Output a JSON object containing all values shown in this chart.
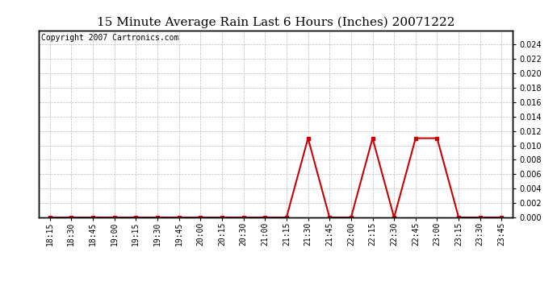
{
  "title": "15 Minute Average Rain Last 6 Hours (Inches) 20071222",
  "copyright_text": "Copyright 2007 Cartronics.com",
  "x_labels": [
    "18:15",
    "18:30",
    "18:45",
    "19:00",
    "19:15",
    "19:30",
    "19:45",
    "20:00",
    "20:15",
    "20:30",
    "21:00",
    "21:15",
    "21:30",
    "21:45",
    "22:00",
    "22:15",
    "22:30",
    "22:45",
    "23:00",
    "23:15",
    "23:30",
    "23:45"
  ],
  "y_values": [
    0.0,
    0.0,
    0.0,
    0.0,
    0.0,
    0.0,
    0.0,
    0.0,
    0.0,
    0.0,
    0.0,
    0.0,
    0.011,
    0.0,
    0.0,
    0.011,
    0.0,
    0.011,
    0.011,
    0.0,
    0.0,
    0.0
  ],
  "ylim": [
    0.0,
    0.026
  ],
  "yticks": [
    0.0,
    0.002,
    0.004,
    0.006,
    0.008,
    0.01,
    0.012,
    0.014,
    0.016,
    0.018,
    0.02,
    0.022,
    0.024
  ],
  "line_color": "#cc0000",
  "marker": "s",
  "marker_size": 2.5,
  "line_width": 1.5,
  "bg_color": "#ffffff",
  "grid_color": "#bbbbbb",
  "title_fontsize": 11,
  "tick_fontsize": 7,
  "copyright_fontsize": 7
}
